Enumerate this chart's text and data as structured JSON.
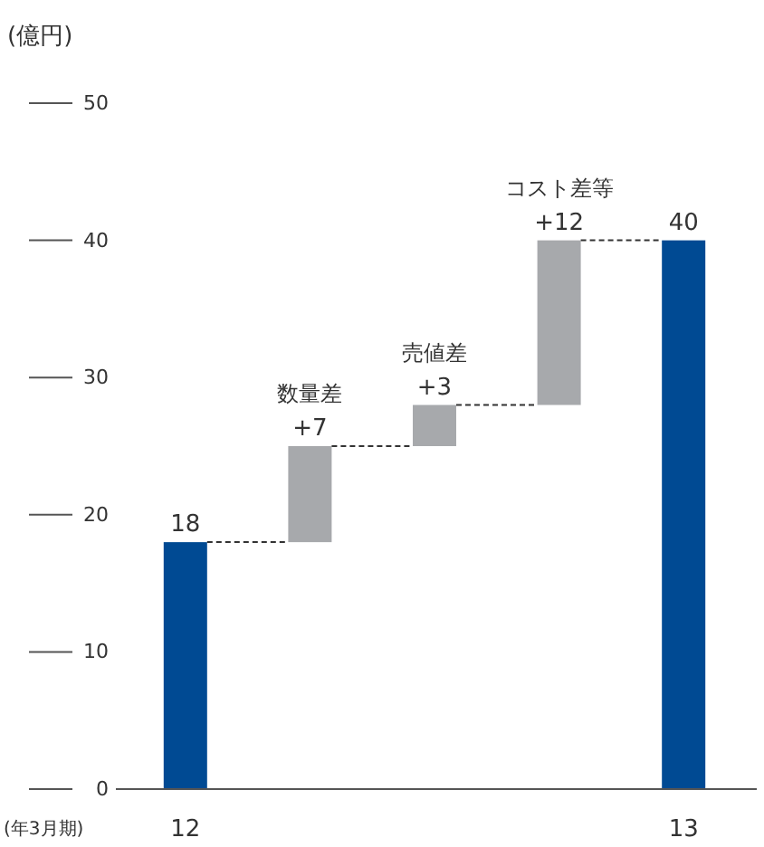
{
  "chart_data": {
    "type": "bar",
    "ylabel": "(億円)",
    "categories": [
      "12",
      null,
      null,
      null,
      "13"
    ],
    "values": [
      18,
      7,
      3,
      12,
      40
    ],
    "base": [
      0,
      18,
      25,
      28,
      0
    ],
    "colors": [
      "#004a93",
      "#a7a9ac",
      "#a7a9ac",
      "#a7a9ac",
      "#004a93"
    ],
    "value_labels": [
      "18",
      "+7",
      "+3",
      "+12",
      "40"
    ],
    "ylim": [
      0,
      50
    ],
    "yticks": [
      0,
      10,
      20,
      30,
      40,
      50
    ],
    "annotations": [
      "数量差",
      "売値差",
      "コスト差等",
      "(年3月期)"
    ],
    "grid": false
  }
}
